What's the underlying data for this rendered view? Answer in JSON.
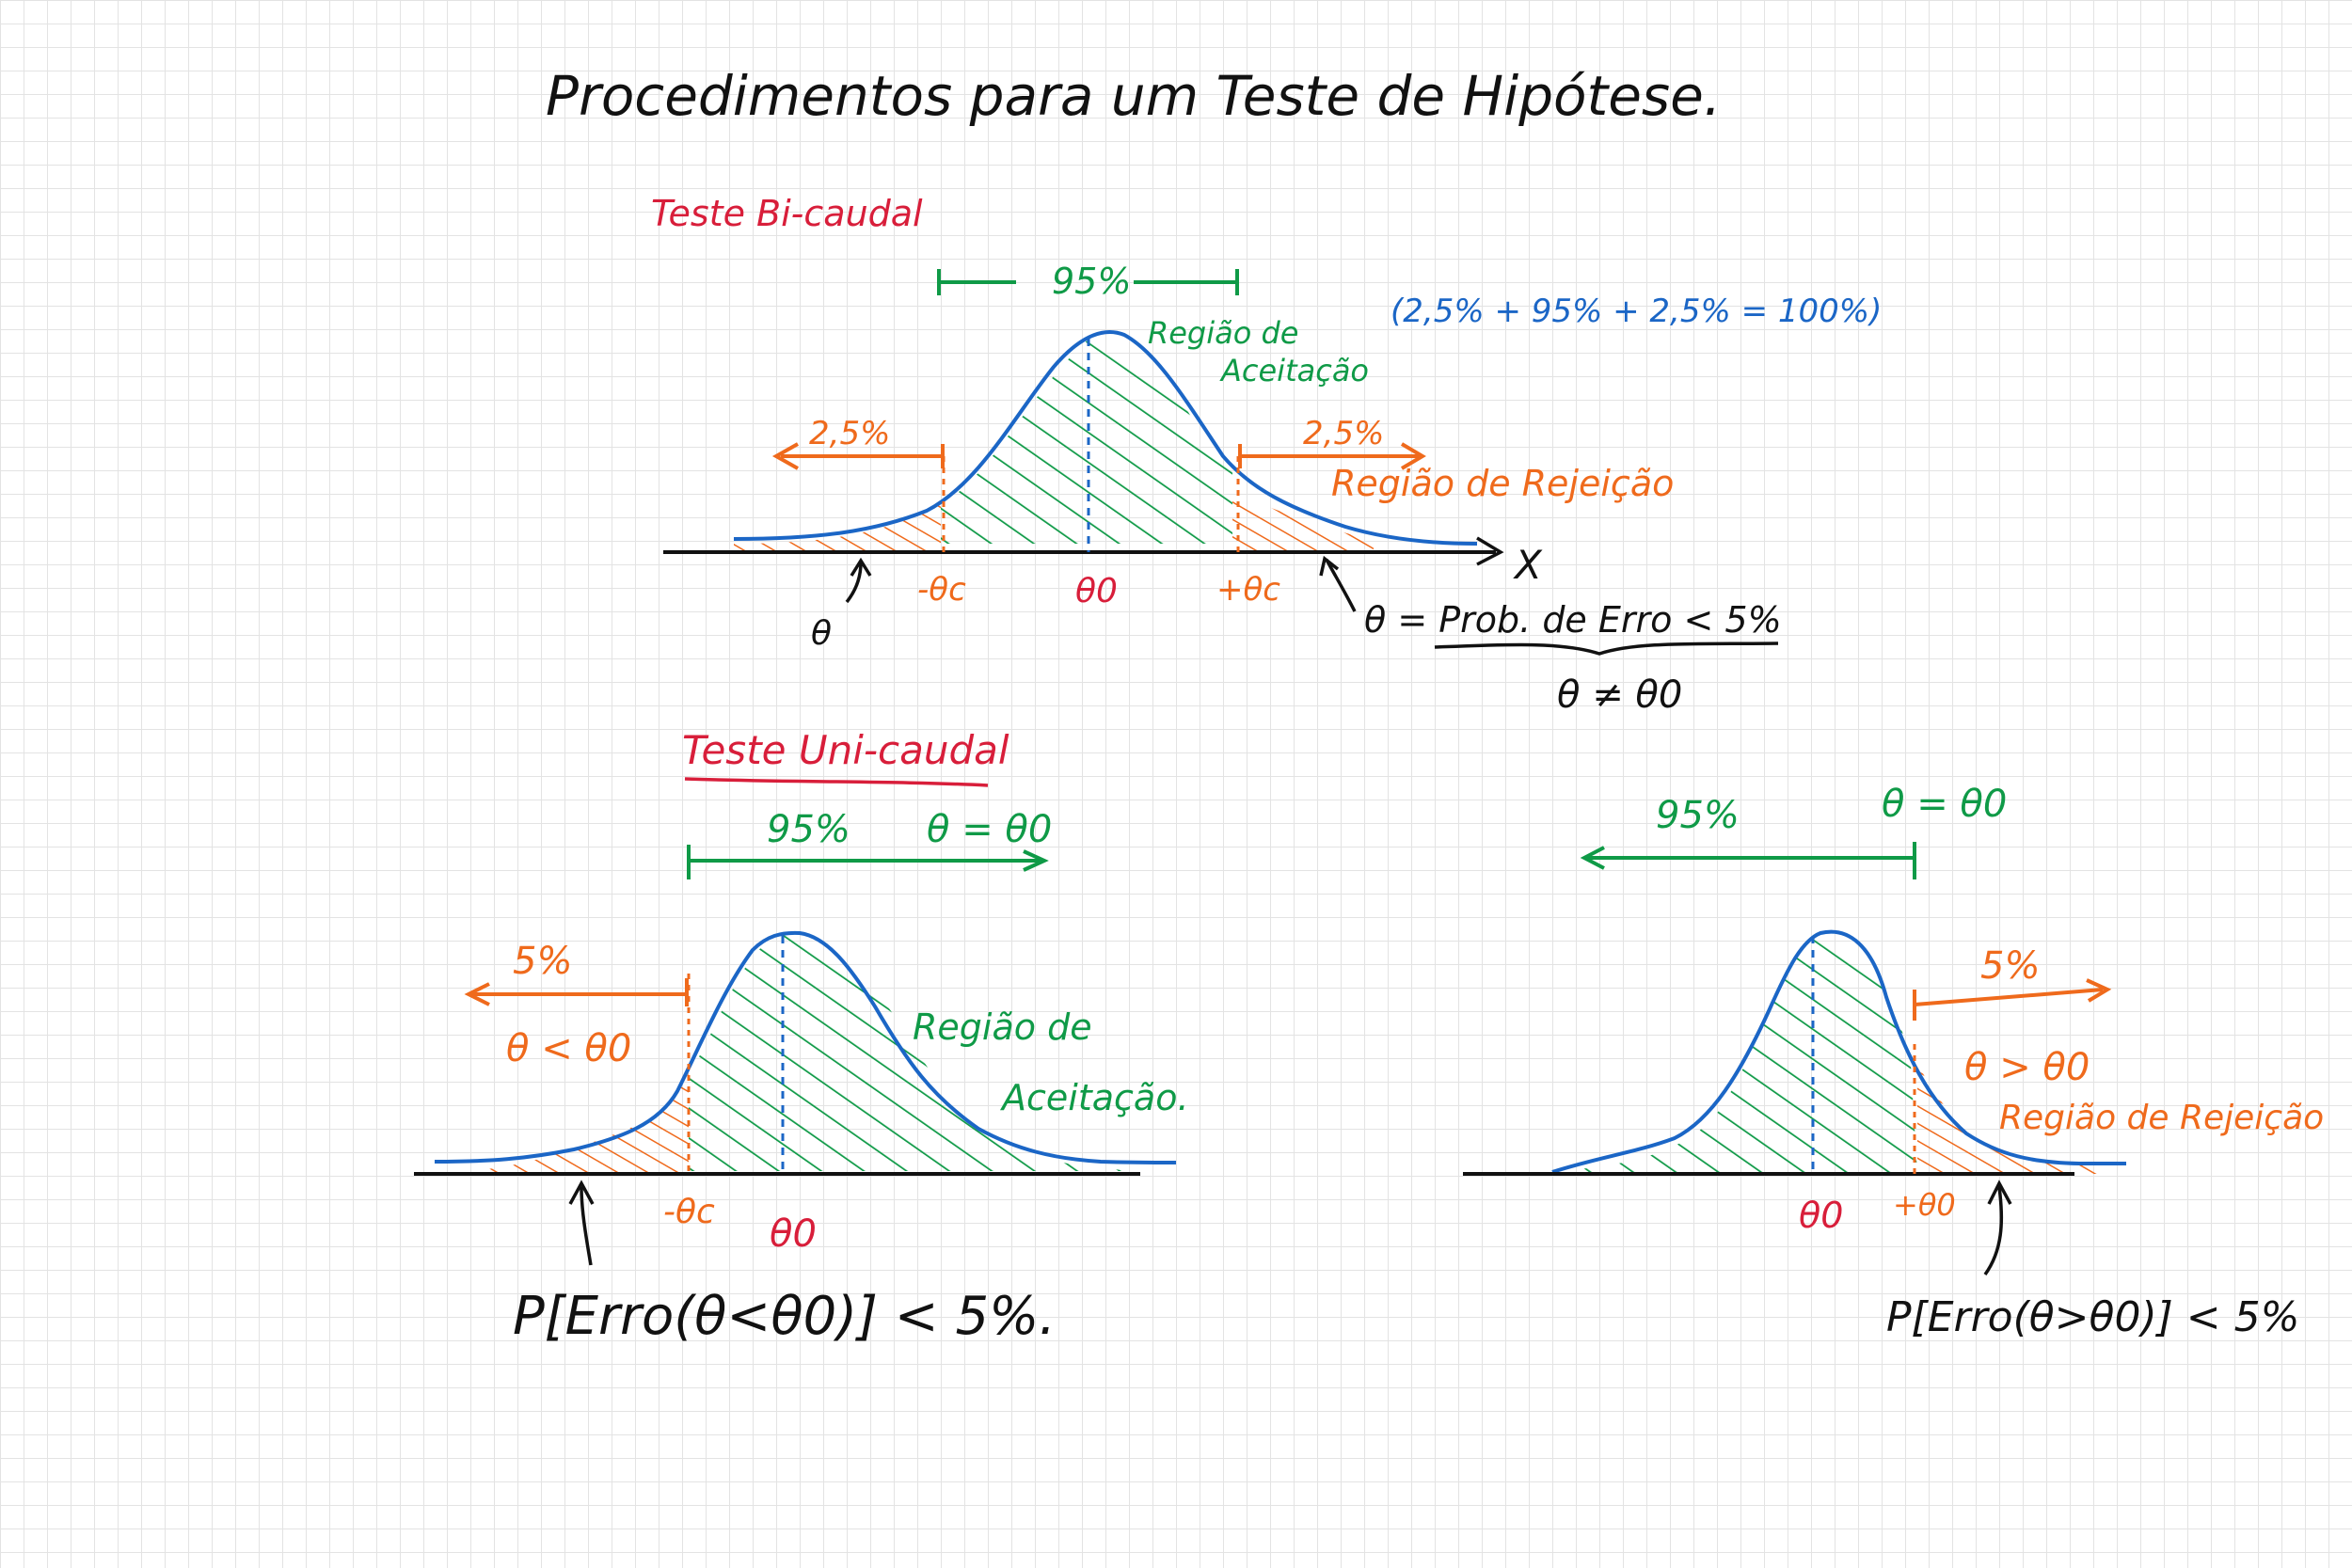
{
  "title": "Procedimentos para um Teste de Hipótese.",
  "bicaudal": {
    "heading": "Teste Bi-caudal",
    "acceptance_pct": "95%",
    "acceptance_label_1": "Região de",
    "acceptance_label_2": "Aceitação",
    "sum_note": "(2,5% + 95% + 2,5% = 100%)",
    "left_pct": "2,5%",
    "right_pct": "2,5%",
    "rejection_label": "Região de Rejeição",
    "axis_var": "X",
    "tick_left": "-θc",
    "tick_center": "θ0",
    "tick_right": "+θc",
    "alpha_symbol": "θ",
    "alpha_def": "θ = Prob. de Erro < 5%",
    "hypothesis": "θ ≠ θ0"
  },
  "unicaudal_left": {
    "heading": "Teste Uni-caudal",
    "acceptance_pct": "95%",
    "hypothesis_eq": "θ = θ0",
    "rejection_pct": "5%",
    "rejection_cond": "θ < θ0",
    "acceptance_label_1": "Região de",
    "acceptance_label_2": "Aceitação.",
    "tick_left": "-θc",
    "tick_center": "θ0",
    "error_prob": "P[Erro(θ<θ0)] < 5%."
  },
  "unicaudal_right": {
    "acceptance_pct": "95%",
    "hypothesis_eq": "θ = θ0",
    "rejection_pct": "5%",
    "rejection_cond": "θ > θ0",
    "rejection_label": "Região de Rejeição",
    "tick_center": "θ0",
    "tick_right": "+θ0",
    "error_prob": "P[Erro(θ>θ0)] < 5%"
  },
  "colors": {
    "curve": "#1b66c6",
    "acceptance": "#0f9a47",
    "rejection": "#ef6a1c",
    "heading": "#d81e3a",
    "ink": "#111111"
  }
}
